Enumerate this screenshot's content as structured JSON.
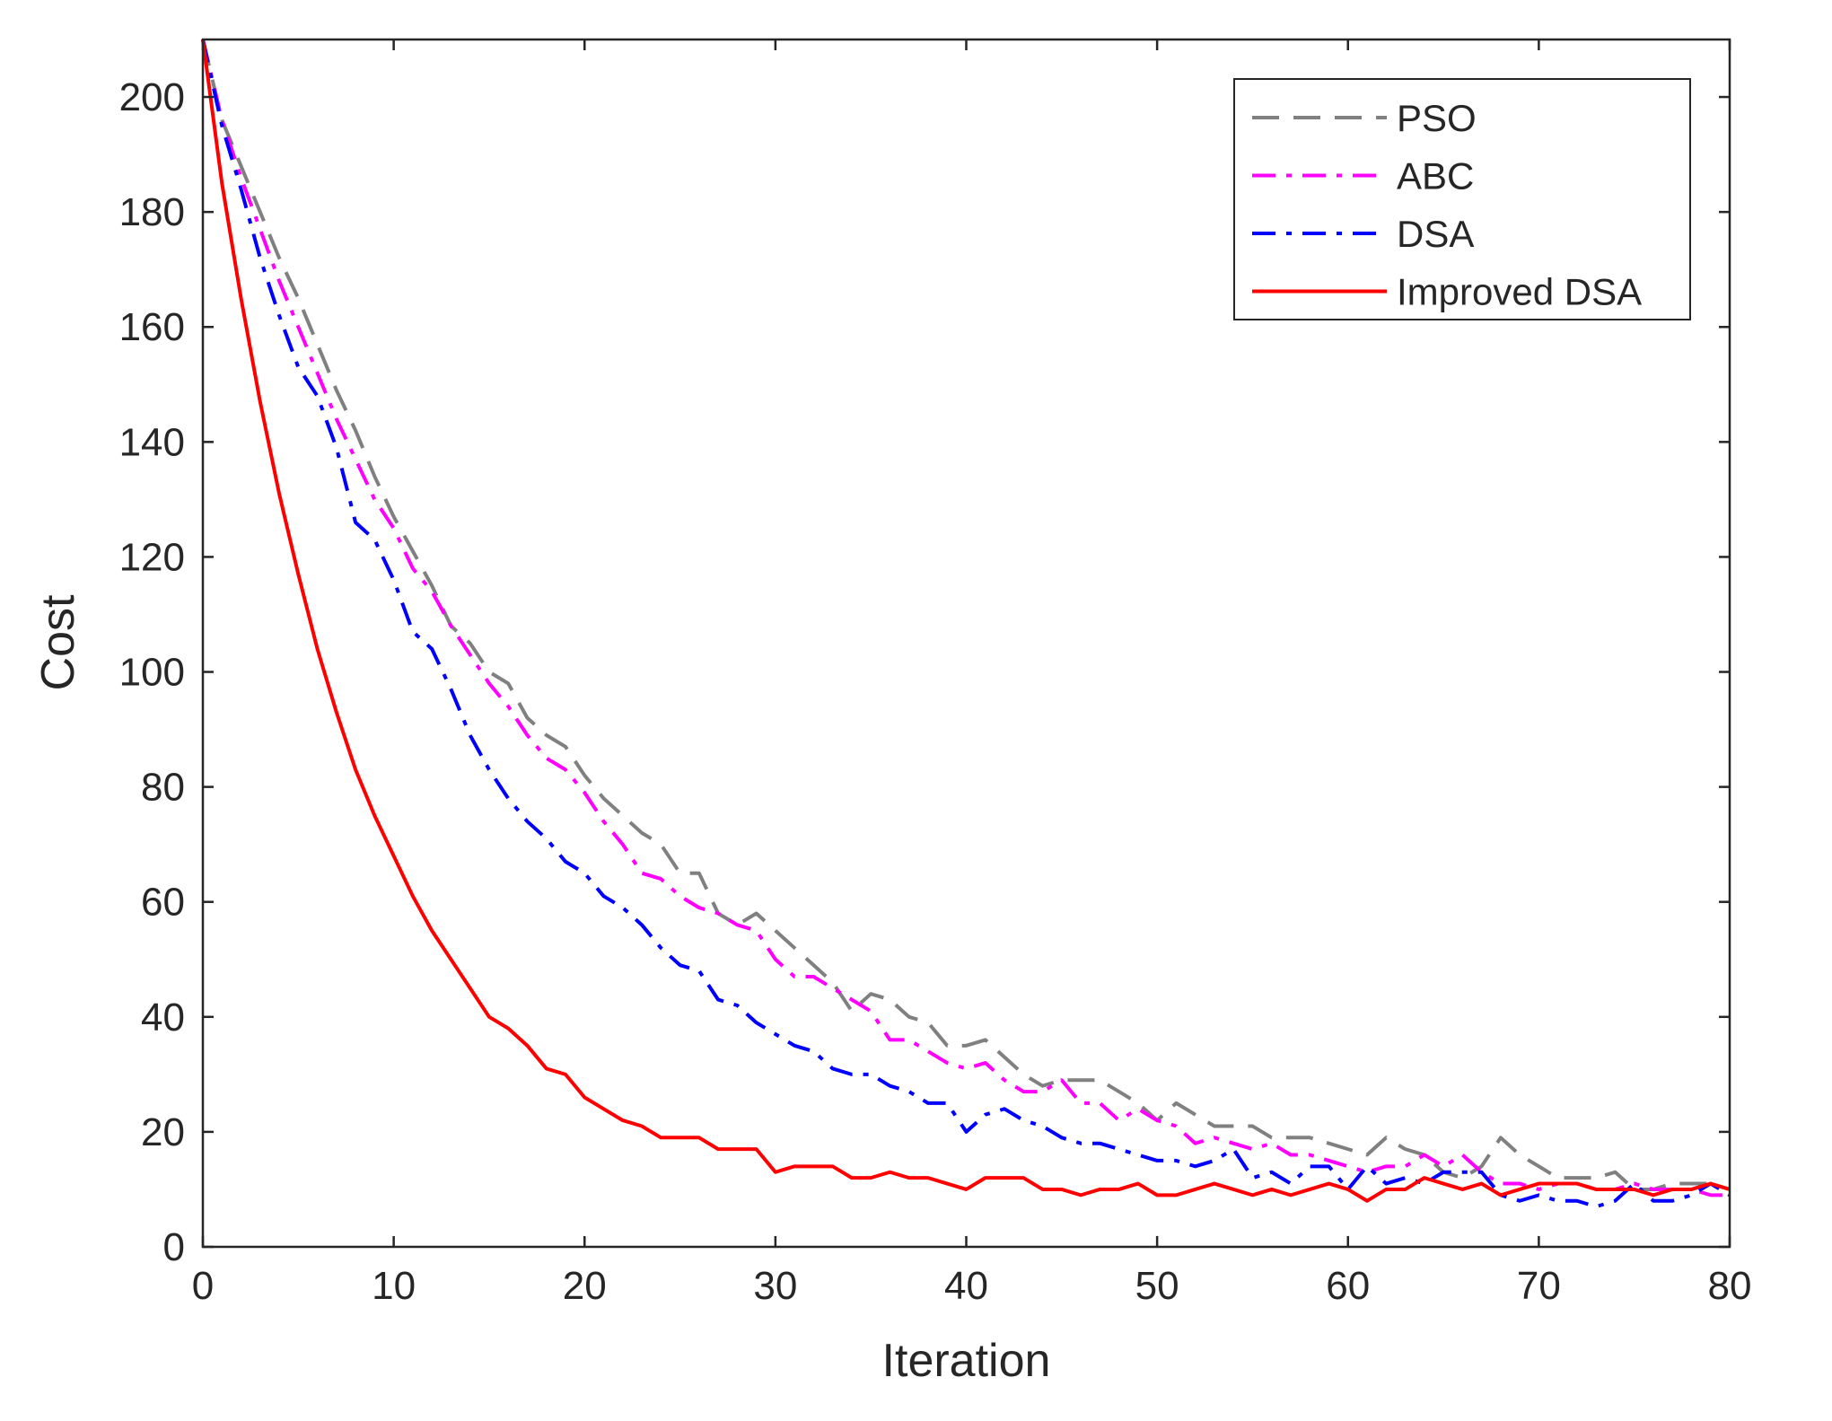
{
  "chart_data": {
    "type": "line",
    "title": "",
    "xlabel": "Iteration",
    "ylabel": "Cost",
    "xlim": [
      0,
      80
    ],
    "ylim": [
      0,
      210
    ],
    "xticks": [
      0,
      10,
      20,
      30,
      40,
      50,
      60,
      70,
      80
    ],
    "yticks": [
      0,
      20,
      40,
      60,
      80,
      100,
      120,
      140,
      160,
      180,
      200
    ],
    "grid": false,
    "box": true,
    "legend_position": "top-right",
    "series": [
      {
        "name": "PSO",
        "color": "#808080",
        "dash": "dashed",
        "x": [
          0,
          1,
          2,
          3,
          4,
          5,
          6,
          7,
          8,
          9,
          10,
          11,
          12,
          13,
          14,
          15,
          16,
          17,
          18,
          19,
          20,
          21,
          22,
          23,
          24,
          25,
          26,
          27,
          28,
          29,
          30,
          31,
          32,
          33,
          34,
          35,
          36,
          37,
          38,
          39,
          40,
          41,
          42,
          43,
          44,
          45,
          46,
          47,
          48,
          49,
          50,
          51,
          52,
          53,
          54,
          55,
          56,
          57,
          58,
          59,
          60,
          61,
          62,
          63,
          64,
          65,
          66,
          67,
          68,
          69,
          70,
          71,
          72,
          73,
          74,
          75,
          76,
          77,
          78,
          79,
          80
        ],
        "values": [
          210,
          196,
          188,
          180,
          172,
          165,
          157,
          149,
          142,
          134,
          127,
          121,
          115,
          108,
          105,
          100,
          98,
          92,
          89,
          87,
          82,
          78,
          75,
          72,
          70,
          65,
          65,
          58,
          56,
          58,
          55,
          52,
          49,
          46,
          41,
          44,
          43,
          40,
          39,
          35,
          35,
          36,
          33,
          30,
          28,
          29,
          29,
          29,
          27,
          25,
          22,
          25,
          23,
          21,
          21,
          21,
          19,
          19,
          19,
          18,
          17,
          16,
          19,
          17,
          16,
          13,
          12,
          14,
          19,
          16,
          14,
          12,
          12,
          12,
          13,
          10,
          10,
          11,
          11,
          11,
          10
        ]
      },
      {
        "name": "ABC",
        "color": "#ff00ff",
        "dash": "dashdot",
        "x": [
          0,
          1,
          2,
          3,
          4,
          5,
          6,
          7,
          8,
          9,
          10,
          11,
          12,
          13,
          14,
          15,
          16,
          17,
          18,
          19,
          20,
          21,
          22,
          23,
          24,
          25,
          26,
          27,
          28,
          29,
          30,
          31,
          32,
          33,
          34,
          35,
          36,
          37,
          38,
          39,
          40,
          41,
          42,
          43,
          44,
          45,
          46,
          47,
          48,
          49,
          50,
          51,
          52,
          53,
          54,
          55,
          56,
          57,
          58,
          59,
          60,
          61,
          62,
          63,
          64,
          65,
          66,
          67,
          68,
          69,
          70,
          71,
          72,
          73,
          74,
          75,
          76,
          77,
          78,
          79,
          80
        ],
        "values": [
          210,
          196,
          186,
          177,
          168,
          160,
          152,
          144,
          137,
          130,
          125,
          118,
          114,
          108,
          103,
          98,
          94,
          89,
          85,
          83,
          79,
          74,
          70,
          65,
          64,
          61,
          59,
          58,
          56,
          55,
          50,
          47,
          47,
          45,
          43,
          41,
          36,
          36,
          34,
          32,
          31,
          32,
          29,
          27,
          27,
          29,
          25,
          25,
          22,
          24,
          22,
          21,
          18,
          19,
          18,
          17,
          18,
          16,
          16,
          15,
          14,
          13,
          14,
          14,
          16,
          14,
          16,
          13,
          11,
          11,
          10,
          11,
          11,
          10,
          10,
          11,
          10,
          10,
          10,
          9,
          9
        ]
      },
      {
        "name": "DSA",
        "color": "#0000ff",
        "dash": "dashdot",
        "x": [
          0,
          1,
          2,
          3,
          4,
          5,
          6,
          7,
          8,
          9,
          10,
          11,
          12,
          13,
          14,
          15,
          16,
          17,
          18,
          19,
          20,
          21,
          22,
          23,
          24,
          25,
          26,
          27,
          28,
          29,
          30,
          31,
          32,
          33,
          34,
          35,
          36,
          37,
          38,
          39,
          40,
          41,
          42,
          43,
          44,
          45,
          46,
          47,
          48,
          49,
          50,
          51,
          52,
          53,
          54,
          55,
          56,
          57,
          58,
          59,
          60,
          61,
          62,
          63,
          64,
          65,
          66,
          67,
          68,
          69,
          70,
          71,
          72,
          73,
          74,
          75,
          76,
          77,
          78,
          79,
          80
        ],
        "values": [
          210,
          195,
          184,
          172,
          162,
          153,
          148,
          139,
          126,
          123,
          116,
          107,
          104,
          97,
          89,
          83,
          78,
          74,
          71,
          67,
          65,
          61,
          59,
          56,
          52,
          49,
          48,
          43,
          42,
          39,
          37,
          35,
          34,
          31,
          30,
          30,
          28,
          27,
          25,
          25,
          20,
          23,
          24,
          22,
          21,
          19,
          18,
          18,
          17,
          16,
          15,
          15,
          14,
          15,
          17,
          12,
          13,
          11,
          14,
          14,
          10,
          14,
          11,
          12,
          11,
          13,
          13,
          13,
          9,
          8,
          9,
          8,
          8,
          7,
          8,
          11,
          8,
          8,
          9,
          11,
          9
        ]
      },
      {
        "name": "Improved DSA",
        "color": "#ff0000",
        "dash": "solid",
        "x": [
          0,
          1,
          2,
          3,
          4,
          5,
          6,
          7,
          8,
          9,
          10,
          11,
          12,
          13,
          14,
          15,
          16,
          17,
          18,
          19,
          20,
          21,
          22,
          23,
          24,
          25,
          26,
          27,
          28,
          29,
          30,
          31,
          32,
          33,
          34,
          35,
          36,
          37,
          38,
          39,
          40,
          41,
          42,
          43,
          44,
          45,
          46,
          47,
          48,
          49,
          50,
          51,
          52,
          53,
          54,
          55,
          56,
          57,
          58,
          59,
          60,
          61,
          62,
          63,
          64,
          65,
          66,
          67,
          68,
          69,
          70,
          71,
          72,
          73,
          74,
          75,
          76,
          77,
          78,
          79,
          80
        ],
        "values": [
          210,
          185,
          165,
          147,
          131,
          117,
          104,
          93,
          83,
          75,
          68,
          61,
          55,
          50,
          45,
          40,
          38,
          35,
          31,
          30,
          26,
          24,
          22,
          21,
          19,
          19,
          19,
          17,
          17,
          17,
          13,
          14,
          14,
          14,
          12,
          12,
          13,
          12,
          12,
          11,
          10,
          12,
          12,
          12,
          10,
          10,
          9,
          10,
          10,
          11,
          9,
          9,
          10,
          11,
          10,
          9,
          10,
          9,
          10,
          11,
          10,
          8,
          10,
          10,
          12,
          11,
          10,
          11,
          9,
          10,
          11,
          11,
          11,
          10,
          10,
          10,
          9,
          10,
          10,
          11,
          10
        ]
      }
    ]
  }
}
